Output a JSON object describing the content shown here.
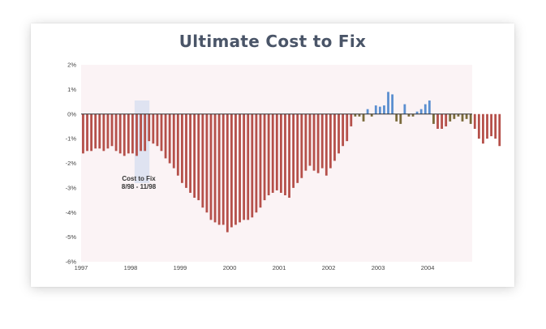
{
  "chart_data": {
    "type": "bar",
    "title": "Ultimate Cost to Fix",
    "xlabel": "",
    "ylabel": "",
    "ylim": [
      -6,
      2
    ],
    "y_ticks": [
      "2%",
      "1%",
      "0%",
      "-1%",
      "-2%",
      "-3%",
      "-4%",
      "-5%",
      "-6%"
    ],
    "x_ticks": [
      "1997",
      "1998",
      "1999",
      "2000",
      "2001",
      "2002",
      "2003",
      "2004"
    ],
    "x_range": [
      1997.0,
      2004.9
    ],
    "grid": false,
    "annotation": {
      "line1": "Cost to Fix",
      "line2": "8/98 - 11/98",
      "x_start": 1998.08,
      "x_end": 1998.38
    },
    "colors": {
      "negative": "#b5504a",
      "negative_alt": "#7a6a3a",
      "positive": "#5b8fd0",
      "background": "#fbf3f5",
      "highlight": "#d9dff0"
    },
    "series": [
      {
        "start": 1997.04,
        "step": 0.0833,
        "values": [
          -1.6,
          -1.5,
          -1.5,
          -1.4,
          -1.4,
          -1.5,
          -1.4,
          -1.3,
          -1.5,
          -1.6,
          -1.7,
          -1.6,
          -1.6,
          -1.7,
          -1.5,
          -1.5,
          -1.1,
          -1.2,
          -1.3,
          -1.5,
          -1.8,
          -2.0,
          -2.2,
          -2.5,
          -2.8,
          -3.0,
          -3.2,
          -3.4,
          -3.5,
          -3.8,
          -4.0,
          -4.3,
          -4.4,
          -4.5,
          -4.5,
          -4.8,
          -4.6,
          -4.5,
          -4.4,
          -4.3,
          -4.3,
          -4.2,
          -4.0,
          -3.8,
          -3.5,
          -3.3,
          -3.2,
          -3.1,
          -3.2,
          -3.3,
          -3.4,
          -3.0,
          -2.8,
          -2.6,
          -2.3,
          -2.1,
          -2.3,
          -2.4,
          -2.2,
          -2.5,
          -2.2,
          -1.9,
          -1.6,
          -1.3,
          -1.1,
          -0.5,
          -0.1,
          -0.1,
          -0.3,
          0.2,
          -0.1,
          0.35,
          0.3,
          0.35,
          0.9,
          0.8,
          -0.3,
          -0.4,
          0.4,
          -0.1,
          -0.1,
          0.1,
          0.2,
          0.4,
          0.55,
          -0.4,
          -0.6,
          -0.6,
          -0.5,
          -0.3,
          -0.2,
          -0.1,
          -0.3,
          -0.2,
          -0.4,
          -0.6,
          -1.0,
          -1.2,
          -1.0,
          -0.9,
          -1.0,
          -1.3
        ]
      }
    ]
  }
}
